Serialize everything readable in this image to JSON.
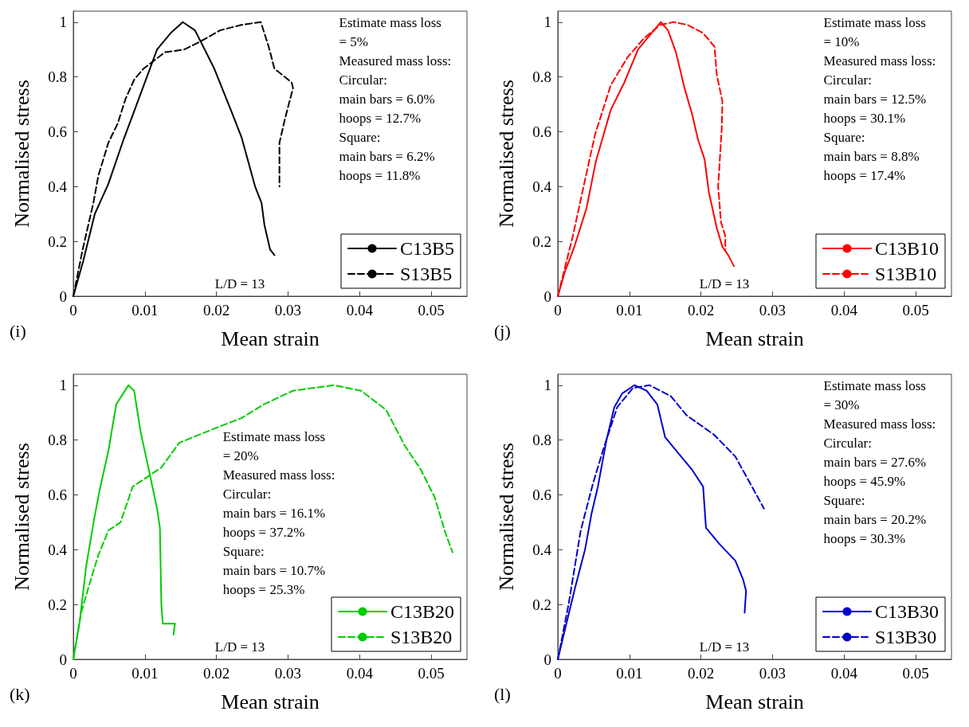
{
  "chart_data": [
    {
      "type": "line",
      "xlabel": "Mean strain",
      "ylabel": "Normalised stress",
      "xlim": [
        0,
        0.055
      ],
      "ylim": [
        0,
        1.04
      ],
      "xticks": [
        0,
        0.01,
        0.02,
        0.03,
        0.04,
        0.05
      ],
      "yticks": [
        0,
        0.2,
        0.4,
        0.6,
        0.8,
        1
      ],
      "legend": "bottom right",
      "grid": false,
      "marker": "none",
      "annotations": [
        "(i)",
        "L/D = 13",
        "Estimate mass loss",
        "= 5%",
        "Measured mass loss:",
        "Circular:",
        "main bars = 6.0%",
        "hoops = 12.7%",
        "Square:",
        "main bars = 6.2%",
        "hoops = 11.8%"
      ],
      "series": [
        {
          "name": "C13B5",
          "color": "#000000",
          "line_style": "solid",
          "x": [
            0,
            0.0014,
            0.003,
            0.0049,
            0.007,
            0.009,
            0.0117,
            0.0136,
            0.0153,
            0.017,
            0.0197,
            0.022,
            0.0235,
            0.0254,
            0.0263,
            0.0267,
            0.0275,
            0.0281
          ],
          "values": [
            0,
            0.13,
            0.3,
            0.41,
            0.57,
            0.71,
            0.9,
            0.96,
            1,
            0.97,
            0.83,
            0.68,
            0.58,
            0.4,
            0.34,
            0.26,
            0.17,
            0.15
          ]
        },
        {
          "name": "S13B5",
          "color": "#000000",
          "line_style": "dashed",
          "x": [
            0,
            0.0013,
            0.0028,
            0.0035,
            0.0049,
            0.0062,
            0.0073,
            0.0085,
            0.0098,
            0.0113,
            0.0128,
            0.0155,
            0.0178,
            0.0205,
            0.0235,
            0.0262,
            0.0273,
            0.0281,
            0.0305,
            0.0307,
            0.0296,
            0.0288,
            0.0288
          ],
          "values": [
            0,
            0.17,
            0.34,
            0.44,
            0.56,
            0.63,
            0.72,
            0.79,
            0.83,
            0.86,
            0.89,
            0.9,
            0.93,
            0.97,
            0.99,
            1,
            0.91,
            0.83,
            0.78,
            0.76,
            0.65,
            0.56,
            0.4
          ]
        }
      ]
    },
    {
      "type": "line",
      "xlabel": "Mean strain",
      "ylabel": "Normalised stress",
      "xlim": [
        0,
        0.055
      ],
      "ylim": [
        0,
        1.04
      ],
      "xticks": [
        0,
        0.01,
        0.02,
        0.03,
        0.04,
        0.05
      ],
      "yticks": [
        0,
        0.2,
        0.4,
        0.6,
        0.8,
        1
      ],
      "legend": "bottom right",
      "grid": false,
      "marker": "none",
      "annotations": [
        "(j)",
        "L/D = 13",
        "Estimate mass loss",
        "= 10%",
        "Measured mass loss:",
        "Circular:",
        "main bars = 12.5%",
        "hoops = 30.1%",
        "Square:",
        "main bars = 8.8%",
        "hoops = 17.4%"
      ],
      "series": [
        {
          "name": "C13B10",
          "color": "#ff0000",
          "line_style": "solid",
          "x": [
            0,
            0.001,
            0.0023,
            0.004,
            0.0053,
            0.0074,
            0.0093,
            0.0112,
            0.0131,
            0.0144,
            0.0154,
            0.0165,
            0.0177,
            0.0188,
            0.0196,
            0.0205,
            0.0211,
            0.0222,
            0.023,
            0.0238,
            0.0246
          ],
          "values": [
            0,
            0.09,
            0.18,
            0.32,
            0.49,
            0.68,
            0.78,
            0.9,
            0.96,
            1,
            0.97,
            0.89,
            0.76,
            0.66,
            0.57,
            0.5,
            0.38,
            0.25,
            0.18,
            0.15,
            0.11
          ]
        },
        {
          "name": "S13B10",
          "color": "#ff0000",
          "line_style": "dashed",
          "x": [
            0,
            0.0021,
            0.0036,
            0.0052,
            0.0074,
            0.0097,
            0.012,
            0.0143,
            0.0162,
            0.0181,
            0.0203,
            0.0219,
            0.0222,
            0.023,
            0.0229,
            0.0224,
            0.0228,
            0.0234,
            0.0234
          ],
          "values": [
            0,
            0.22,
            0.4,
            0.59,
            0.77,
            0.87,
            0.94,
            0.99,
            1,
            0.99,
            0.96,
            0.91,
            0.81,
            0.71,
            0.61,
            0.4,
            0.27,
            0.22,
            0.17
          ]
        }
      ]
    },
    {
      "type": "line",
      "xlabel": "Mean strain",
      "ylabel": "Normalised stress",
      "xlim": [
        0,
        0.055
      ],
      "ylim": [
        0,
        1.04
      ],
      "xticks": [
        0,
        0.01,
        0.02,
        0.03,
        0.04,
        0.05
      ],
      "yticks": [
        0,
        0.2,
        0.4,
        0.6,
        0.8,
        1
      ],
      "legend": "bottom right",
      "grid": false,
      "marker": "none",
      "annotations": [
        "(k)",
        "L/D = 13",
        "Estimate mass loss",
        "= 20%",
        "Measured mass loss:",
        "Circular:",
        "main bars = 16.1%",
        "hoops = 37.2%",
        "Square:",
        "main bars = 10.7%",
        "hoops = 25.3%"
      ],
      "series": [
        {
          "name": "C13B20",
          "color": "#00cc00",
          "line_style": "solid",
          "x": [
            0,
            0.0009,
            0.0018,
            0.0029,
            0.0037,
            0.0049,
            0.006,
            0.0077,
            0.0085,
            0.0094,
            0.0104,
            0.0117,
            0.0121,
            0.0123,
            0.0125,
            0.0142,
            0.014
          ],
          "values": [
            0,
            0.14,
            0.34,
            0.51,
            0.62,
            0.76,
            0.93,
            1,
            0.98,
            0.83,
            0.71,
            0.55,
            0.48,
            0.2,
            0.13,
            0.13,
            0.09
          ]
        },
        {
          "name": "S13B20",
          "color": "#00cc00",
          "line_style": "dashed",
          "x": [
            0,
            0.0011,
            0.0022,
            0.0035,
            0.0049,
            0.0066,
            0.0083,
            0.0106,
            0.0123,
            0.0148,
            0.0167,
            0.0205,
            0.0235,
            0.0266,
            0.0307,
            0.0364,
            0.0402,
            0.0437,
            0.0463,
            0.0486,
            0.0505,
            0.052,
            0.053
          ],
          "values": [
            0,
            0.17,
            0.27,
            0.38,
            0.47,
            0.5,
            0.63,
            0.67,
            0.7,
            0.79,
            0.81,
            0.85,
            0.88,
            0.93,
            0.98,
            1,
            0.98,
            0.91,
            0.78,
            0.69,
            0.59,
            0.46,
            0.39
          ]
        }
      ]
    },
    {
      "type": "line",
      "xlabel": "Mean strain",
      "ylabel": "Normalised stress",
      "xlim": [
        0,
        0.055
      ],
      "ylim": [
        0,
        1.04
      ],
      "xticks": [
        0,
        0.01,
        0.02,
        0.03,
        0.04,
        0.05
      ],
      "yticks": [
        0,
        0.2,
        0.4,
        0.6,
        0.8,
        1
      ],
      "legend": "bottom right",
      "grid": false,
      "marker": "none",
      "annotations": [
        "(l)",
        "L/D = 13",
        "Estimate mass loss",
        "= 30%",
        "Measured mass loss:",
        "Circular:",
        "main bars = 27.6%",
        "hoops = 45.9%",
        "Square:",
        "main bars = 20.2%",
        "hoops = 30.3%"
      ],
      "series": [
        {
          "name": "C13B30",
          "color": "#0000cc",
          "line_style": "solid",
          "x": [
            0,
            0.0011,
            0.0024,
            0.0038,
            0.0047,
            0.0056,
            0.0068,
            0.0079,
            0.009,
            0.0107,
            0.0124,
            0.0139,
            0.015,
            0.0169,
            0.0188,
            0.0203,
            0.0207,
            0.0226,
            0.0248,
            0.0259,
            0.0263,
            0.0261
          ],
          "values": [
            0,
            0.12,
            0.26,
            0.4,
            0.53,
            0.63,
            0.8,
            0.92,
            0.97,
            1,
            0.98,
            0.93,
            0.81,
            0.75,
            0.69,
            0.63,
            0.48,
            0.42,
            0.36,
            0.29,
            0.25,
            0.17
          ]
        },
        {
          "name": "S13B30",
          "color": "#0000cc",
          "line_style": "dashed",
          "x": [
            0,
            0.0015,
            0.0032,
            0.0049,
            0.0064,
            0.0083,
            0.0105,
            0.0128,
            0.0158,
            0.018,
            0.0218,
            0.0248,
            0.0267,
            0.0288
          ],
          "values": [
            0,
            0.2,
            0.47,
            0.64,
            0.77,
            0.92,
            0.99,
            1,
            0.96,
            0.89,
            0.82,
            0.74,
            0.65,
            0.55
          ]
        }
      ]
    }
  ]
}
